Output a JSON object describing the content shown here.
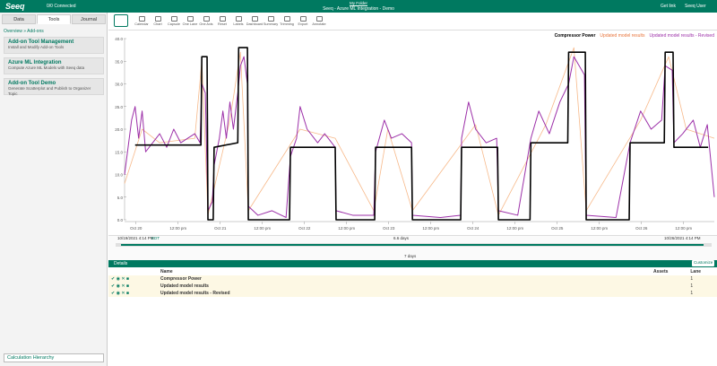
{
  "header": {
    "logo": "Seeq",
    "connected": "0/0 Connected",
    "folder": "My Folder",
    "title": "Seeq - Azure ML Integration - Demo",
    "get_link": "Get link",
    "user": "Seeq User"
  },
  "left_panel": {
    "tabs": [
      "Data",
      "Tools",
      "Journal"
    ],
    "breadcrumb": "Overview » Add-ons",
    "tools": [
      {
        "title": "Add-on Tool Management",
        "description": "Install and Modify Add-on Tools"
      },
      {
        "title": "Azure ML Integration",
        "description": "Compute Azure ML Models with Seeq data"
      },
      {
        "title": "Add-on Tool Demo",
        "description": "Generate Scatterplot and Publish to Organizer Topic"
      }
    ],
    "footer": "Calculation Hierarchy"
  },
  "toolbar": [
    "Calendar",
    "Chart",
    "Capsule",
    "One Lane",
    "One Axis",
    "Reset",
    "Labels",
    "Dashboard",
    "Summary",
    "Trimming",
    "Export",
    "Annotate"
  ],
  "chart_data": {
    "type": "line",
    "xlim": [
      0,
      168
    ],
    "xticks": [
      {
        "value": 3.25,
        "label": "Oct 20"
      },
      {
        "value": 15.25,
        "label": "12:00 pm"
      },
      {
        "value": 27.25,
        "label": "Oct 21"
      },
      {
        "value": 39.25,
        "label": "12:00 pm"
      },
      {
        "value": 51.25,
        "label": "Oct 22"
      },
      {
        "value": 63.25,
        "label": "12:00 pm"
      },
      {
        "value": 75.25,
        "label": "Oct 23"
      },
      {
        "value": 87.25,
        "label": "12:00 pm"
      },
      {
        "value": 99.25,
        "label": "Oct 24"
      },
      {
        "value": 111.25,
        "label": "12:00 pm"
      },
      {
        "value": 123.25,
        "label": "Oct 25"
      },
      {
        "value": 135.25,
        "label": "12:00 pm"
      },
      {
        "value": 147.25,
        "label": "Oct 26"
      },
      {
        "value": 159.25,
        "label": "12:00 pm"
      }
    ],
    "ylim": [
      0,
      40
    ],
    "yticks": [
      {
        "value": 0,
        "label": "0.0"
      },
      {
        "value": 5,
        "label": "5.0"
      },
      {
        "value": 10,
        "label": "10.0"
      },
      {
        "value": 15,
        "label": "15.0"
      },
      {
        "value": 20,
        "label": "20.0"
      },
      {
        "value": 25,
        "label": "25.0"
      },
      {
        "value": 30,
        "label": "30.0"
      },
      {
        "value": 35,
        "label": "35.0"
      },
      {
        "value": 40,
        "label": "40.0"
      }
    ],
    "grid": false,
    "series": [
      {
        "name": "Updated model results",
        "color": "#f7b98a",
        "width": 0.8,
        "x": [
          0,
          5,
          10,
          20,
          22,
          23.75,
          30,
          33,
          35.25,
          50,
          60,
          71,
          75,
          82,
          100,
          106.5,
          120,
          128,
          131.5,
          147,
          155,
          160,
          168
        ],
        "values": [
          8,
          20,
          17,
          18,
          35,
          1,
          22,
          37,
          2,
          20,
          18,
          2,
          20,
          2,
          21,
          1,
          21,
          38,
          2,
          22,
          36,
          20,
          18
        ]
      },
      {
        "name": "Updated model results - Revised",
        "color": "#9c2fa8",
        "width": 1,
        "x": [
          0,
          2,
          3,
          4,
          5,
          6,
          8,
          10,
          12,
          14,
          16,
          18,
          20,
          21.5,
          22,
          23,
          23.75,
          25,
          25.5,
          27,
          28,
          29,
          30,
          31,
          32.25,
          33,
          34,
          35,
          35.25,
          38,
          42,
          46,
          47.25,
          49,
          50,
          52,
          55,
          57,
          60,
          60.25,
          65,
          71,
          71.5,
          74,
          76,
          79,
          81.75,
          82,
          90,
          95.75,
          96,
          98,
          100,
          103,
          106,
          106.5,
          112,
          115.75,
          118,
          121,
          124,
          126.5,
          128,
          131,
          131.5,
          140,
          144,
          147,
          150,
          153,
          154,
          156,
          156.5,
          159,
          162,
          164,
          166,
          168
        ],
        "values": [
          10,
          22,
          25,
          18,
          24,
          15,
          17,
          19,
          16,
          20,
          17,
          18,
          19,
          17,
          30,
          28,
          2,
          4,
          12,
          18,
          24,
          18,
          26,
          20,
          28,
          34,
          36,
          30,
          3,
          1,
          2,
          0.5,
          14,
          18,
          25,
          20,
          17,
          19,
          16,
          2,
          1,
          1,
          15,
          22,
          18,
          19,
          17,
          1,
          0.5,
          1,
          18,
          26,
          20,
          17,
          18,
          2,
          1,
          18,
          24,
          19,
          26,
          30,
          36,
          32,
          1,
          0.5,
          17,
          24,
          20,
          22,
          34,
          33,
          17,
          19,
          22,
          16,
          21,
          5
        ]
      },
      {
        "name": "Compressor Power",
        "color": "#000000",
        "width": 1.6,
        "x": [
          3,
          21.75,
          22,
          23.5,
          23.75,
          25.25,
          25.5,
          32.25,
          32.5,
          35,
          35.25,
          47,
          47.25,
          60,
          60.25,
          71.25,
          71.5,
          81.75,
          82,
          95.75,
          96,
          106.25,
          106.5,
          115.5,
          115.75,
          126.25,
          126.5,
          131.25,
          131.5,
          143.75,
          144,
          153.75,
          154,
          156.25,
          156.5,
          166.25
        ],
        "values": [
          16.5,
          16.5,
          36,
          36,
          0,
          0,
          16,
          17,
          38,
          38,
          0,
          0,
          16,
          16,
          0,
          0,
          16,
          16,
          0,
          0,
          16,
          16,
          0,
          0,
          17,
          17,
          37,
          37,
          0,
          0,
          17,
          17,
          37,
          37,
          16,
          16
        ]
      }
    ]
  },
  "time_bar": {
    "start": "10/19/2021 4:14 PM",
    "end": "10/26/2021 4:14 PM",
    "tz": "EDT",
    "step": "6.6 days",
    "duration": "7 days"
  },
  "details": {
    "title": "Details",
    "customize": "Customize",
    "columns": [
      "Name",
      "Assets",
      "Lane"
    ],
    "rows": [
      [
        "Compressor Power",
        1
      ],
      [
        "Updated model results",
        1
      ],
      [
        "Updated model results - Revised",
        1
      ]
    ]
  }
}
